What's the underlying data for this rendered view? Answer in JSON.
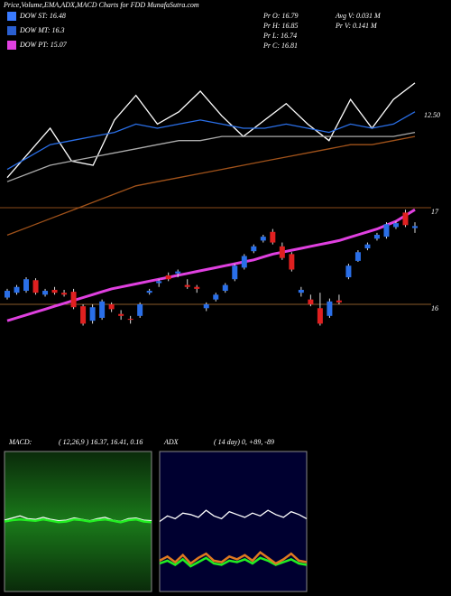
{
  "header": {
    "title": "Price,Volume,EMA,ADX,MACD Charts for FDD MunafaSutra.com",
    "legend": [
      {
        "label": "DOW ST: 16.48",
        "color": "#3a7bff"
      },
      {
        "label": "DOW MT: 16.3",
        "color": "#2a5fd0"
      },
      {
        "label": "DOW PT: 15.07",
        "color": "#e040e0"
      }
    ],
    "info": [
      "Pr  O: 16.79",
      "Pr  H: 16.85",
      "Pr  L: 16.74",
      "Pr  C: 16.81"
    ],
    "info2": [
      "Avg V: 0.031 M",
      "Pr  V: 0.141 M"
    ]
  },
  "chart_data": [
    {
      "type": "candlestick",
      "up_color": "#2a6fe8",
      "down_color": "#e02020",
      "open": [
        16.07,
        16.12,
        16.14,
        16.25,
        16.1,
        16.15,
        16.12,
        16.13,
        15.98,
        15.83,
        15.86,
        16.0,
        15.9,
        15.85,
        15.88,
        16.12,
        16.22,
        16.3,
        16.32,
        16.2,
        16.18,
        15.96,
        16.05,
        16.14,
        16.26,
        16.38,
        16.55,
        16.66,
        16.75,
        16.6,
        16.52,
        16.12,
        16.05,
        15.96,
        15.88,
        16.04,
        16.28,
        16.45,
        16.58,
        16.68,
        16.7,
        16.8,
        16.95,
        16.79
      ],
      "high": [
        16.16,
        16.2,
        16.28,
        16.27,
        16.16,
        16.18,
        16.15,
        16.16,
        16.0,
        16.0,
        16.05,
        16.02,
        15.94,
        15.88,
        16.02,
        16.16,
        16.26,
        16.33,
        16.36,
        16.26,
        16.2,
        16.02,
        16.12,
        16.22,
        16.42,
        16.52,
        16.62,
        16.72,
        16.78,
        16.64,
        16.54,
        16.18,
        16.1,
        16.12,
        16.06,
        16.1,
        16.42,
        16.56,
        16.64,
        16.74,
        16.85,
        16.86,
        16.98,
        16.85
      ],
      "low": [
        16.05,
        16.1,
        16.12,
        16.1,
        16.08,
        16.1,
        16.08,
        15.95,
        15.78,
        15.8,
        15.84,
        15.92,
        15.84,
        15.8,
        15.86,
        16.1,
        16.18,
        16.24,
        16.28,
        16.16,
        16.12,
        15.93,
        16.03,
        16.12,
        16.24,
        16.36,
        16.53,
        16.64,
        16.62,
        16.46,
        16.34,
        16.08,
        15.98,
        15.78,
        15.86,
        16.0,
        16.26,
        16.44,
        16.56,
        16.66,
        16.68,
        16.78,
        16.8,
        16.74
      ],
      "close": [
        16.14,
        16.18,
        16.26,
        16.12,
        16.14,
        16.12,
        16.1,
        15.97,
        15.8,
        15.97,
        16.03,
        15.95,
        15.88,
        15.84,
        16.0,
        16.14,
        16.24,
        16.26,
        16.34,
        16.18,
        16.16,
        16.0,
        16.1,
        16.2,
        16.4,
        16.5,
        16.6,
        16.7,
        16.64,
        16.48,
        16.36,
        16.15,
        16.0,
        15.8,
        16.03,
        16.02,
        16.4,
        16.54,
        16.62,
        16.72,
        16.83,
        16.84,
        16.82,
        16.81
      ],
      "series": [
        {
          "color": "#e040e0",
          "values": [
            15.83,
            15.86,
            15.89,
            15.92,
            15.95,
            15.98,
            16.01,
            16.04,
            16.07,
            16.1,
            16.13,
            16.16,
            16.18,
            16.2,
            16.22,
            16.24,
            16.26,
            16.28,
            16.3,
            16.32,
            16.34,
            16.36,
            16.38,
            16.4,
            16.42,
            16.44,
            16.46,
            16.49,
            16.52,
            16.54,
            16.56,
            16.58,
            16.6,
            16.62,
            16.64,
            16.66,
            16.69,
            16.72,
            16.75,
            16.78,
            16.82,
            16.86,
            16.92,
            16.98
          ]
        }
      ],
      "ylim": [
        14.85,
        18.59
      ],
      "yticks": [
        16,
        17
      ]
    },
    {
      "type": "line",
      "series": [
        {
          "color": "#ffffff",
          "values": [
            11.0,
            11.6,
            12.2,
            11.4,
            11.3,
            12.4,
            13.0,
            12.3,
            12.6,
            13.1,
            12.5,
            12.0,
            12.4,
            12.8,
            12.3,
            11.9,
            12.9,
            12.2,
            12.9,
            13.3
          ]
        },
        {
          "color": "#2a6fe8",
          "values": [
            11.2,
            11.5,
            11.8,
            11.9,
            12.0,
            12.1,
            12.3,
            12.2,
            12.3,
            12.4,
            12.3,
            12.2,
            12.2,
            12.3,
            12.2,
            12.1,
            12.3,
            12.2,
            12.3,
            12.6
          ]
        },
        {
          "color": "#aaaaaa",
          "values": [
            10.9,
            11.1,
            11.3,
            11.4,
            11.5,
            11.6,
            11.7,
            11.8,
            11.9,
            11.9,
            12.0,
            12.0,
            12.0,
            12.0,
            12.0,
            12.0,
            12.0,
            12.0,
            12.0,
            12.1
          ]
        },
        {
          "color": "#a0521a",
          "values": [
            9.6,
            9.8,
            10.0,
            10.2,
            10.4,
            10.6,
            10.8,
            10.9,
            11.0,
            11.1,
            11.2,
            11.3,
            11.4,
            11.5,
            11.6,
            11.7,
            11.8,
            11.8,
            11.9,
            12.0
          ]
        }
      ],
      "ylim": [
        9.5,
        14
      ],
      "yticks": [
        {
          "value": 12.5,
          "label": "12.50"
        }
      ]
    },
    {
      "type": "line",
      "title": "MACD:",
      "subtitle": "( 12,26,9 ) 16.37, 16.41, 0.16",
      "series": [
        {
          "color": "#ffffff",
          "values": [
            0.02,
            0.05,
            0.08,
            0.04,
            0.03,
            0.06,
            0.03,
            0.01,
            0.02,
            0.05,
            0.03,
            0.01,
            0.04,
            0.06,
            0.02,
            0.0,
            0.04,
            0.05,
            0.02,
            0.01
          ]
        },
        {
          "color": "#22ee22",
          "values": [
            0.0,
            0.02,
            0.03,
            0.02,
            0.01,
            0.03,
            0.01,
            -0.01,
            0.0,
            0.03,
            0.02,
            0.0,
            0.02,
            0.03,
            0.01,
            -0.01,
            0.02,
            0.03,
            0.0,
            -0.01
          ]
        }
      ],
      "ylim": [
        -1,
        1
      ]
    },
    {
      "type": "line",
      "title": "ADX",
      "subtitle": "( 14 day) 0, +89, -89",
      "series": [
        {
          "color": "#ffffff",
          "values": [
            50,
            54,
            52,
            56,
            55,
            53,
            58,
            54,
            52,
            57,
            55,
            53,
            56,
            54,
            58,
            55,
            53,
            57,
            55,
            52
          ]
        },
        {
          "color": "#22ee22",
          "values": [
            20,
            22,
            19,
            23,
            18,
            21,
            24,
            20,
            19,
            22,
            21,
            23,
            20,
            24,
            22,
            19,
            21,
            23,
            20,
            19
          ]
        },
        {
          "color": "#e07a20",
          "values": [
            22,
            25,
            21,
            26,
            20,
            24,
            27,
            22,
            21,
            25,
            23,
            26,
            22,
            28,
            24,
            20,
            23,
            27,
            22,
            21
          ]
        }
      ],
      "ylim": [
        0,
        100
      ]
    }
  ]
}
